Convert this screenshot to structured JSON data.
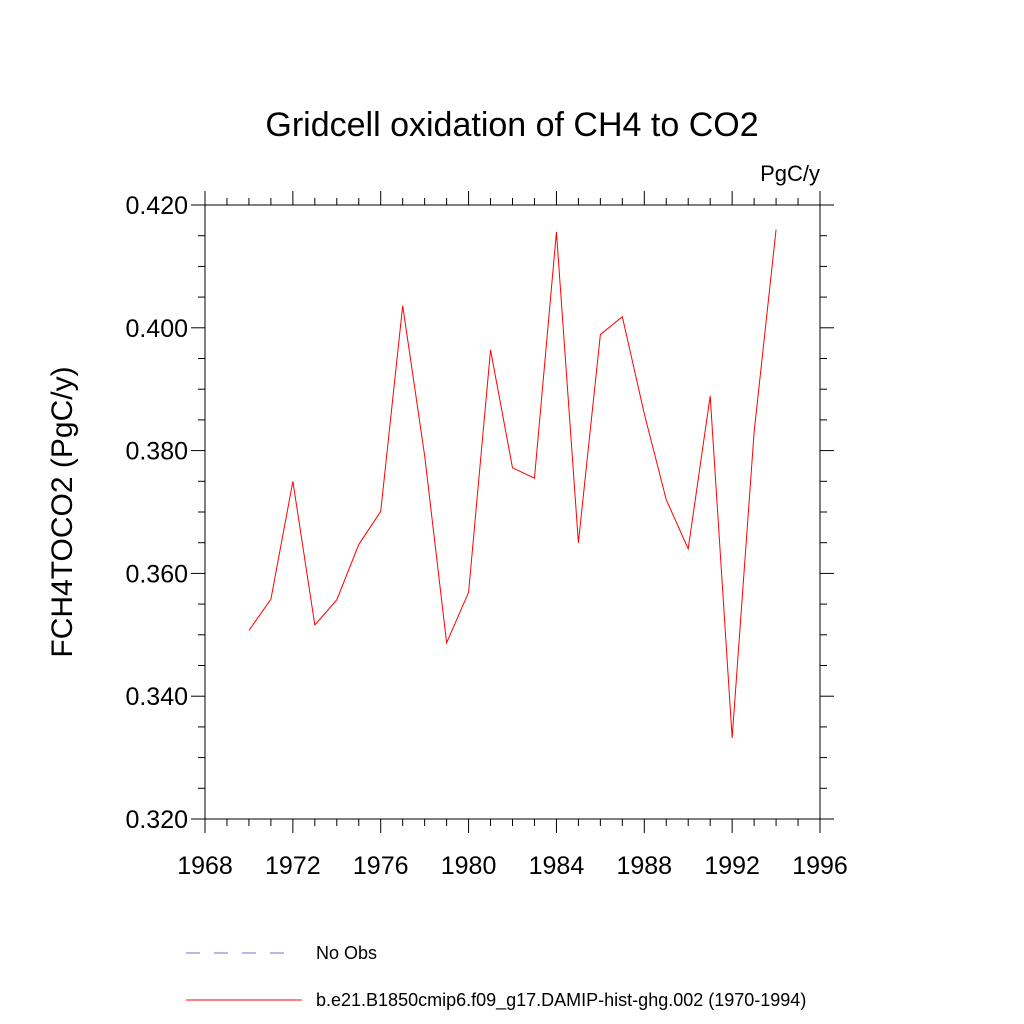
{
  "chart_data": {
    "type": "line",
    "title": "Gridcell oxidation of CH4 to CO2",
    "units": "PgC/y",
    "xlabel": "",
    "ylabel": "FCH4TOCO2  (PgC/y)",
    "xlim": [
      1968,
      1996
    ],
    "ylim": [
      0.32,
      0.42
    ],
    "x_ticks": [
      1968,
      1972,
      1976,
      1980,
      1984,
      1988,
      1992,
      1996
    ],
    "x_tick_labels": [
      "1968",
      "1972",
      "1976",
      "1980",
      "1984",
      "1988",
      "1992",
      "1996"
    ],
    "y_ticks": [
      0.32,
      0.34,
      0.36,
      0.38,
      0.4,
      0.42
    ],
    "y_tick_labels": [
      "0.320",
      "0.340",
      "0.360",
      "0.380",
      "0.400",
      "0.420"
    ],
    "series": [
      {
        "name": "b.e21.B1850cmip6.f09_g17.DAMIP-hist-ghg.002 (1970-1994)",
        "color": "#ff0000",
        "style": "solid",
        "x": [
          1970,
          1971,
          1972,
          1973,
          1974,
          1975,
          1976,
          1977,
          1978,
          1979,
          1980,
          1981,
          1982,
          1983,
          1984,
          1985,
          1986,
          1987,
          1988,
          1989,
          1990,
          1991,
          1992,
          1993,
          1994
        ],
        "values": [
          0.3507,
          0.3558,
          0.375,
          0.3516,
          0.3557,
          0.3647,
          0.3701,
          0.4036,
          0.3792,
          0.3487,
          0.3569,
          0.3964,
          0.3772,
          0.3755,
          0.4156,
          0.365,
          0.3989,
          0.4018,
          0.386,
          0.372,
          0.364,
          0.3889,
          0.3332,
          0.383,
          0.416
        ]
      }
    ],
    "legend": [
      {
        "label": "No Obs",
        "color": "#7b6fd0",
        "style": "dashed"
      },
      {
        "label": "b.e21.B1850cmip6.f09_g17.DAMIP-hist-ghg.002 (1970-1994)",
        "color": "#ff0000",
        "style": "solid"
      }
    ],
    "legend_position": "bottom"
  }
}
